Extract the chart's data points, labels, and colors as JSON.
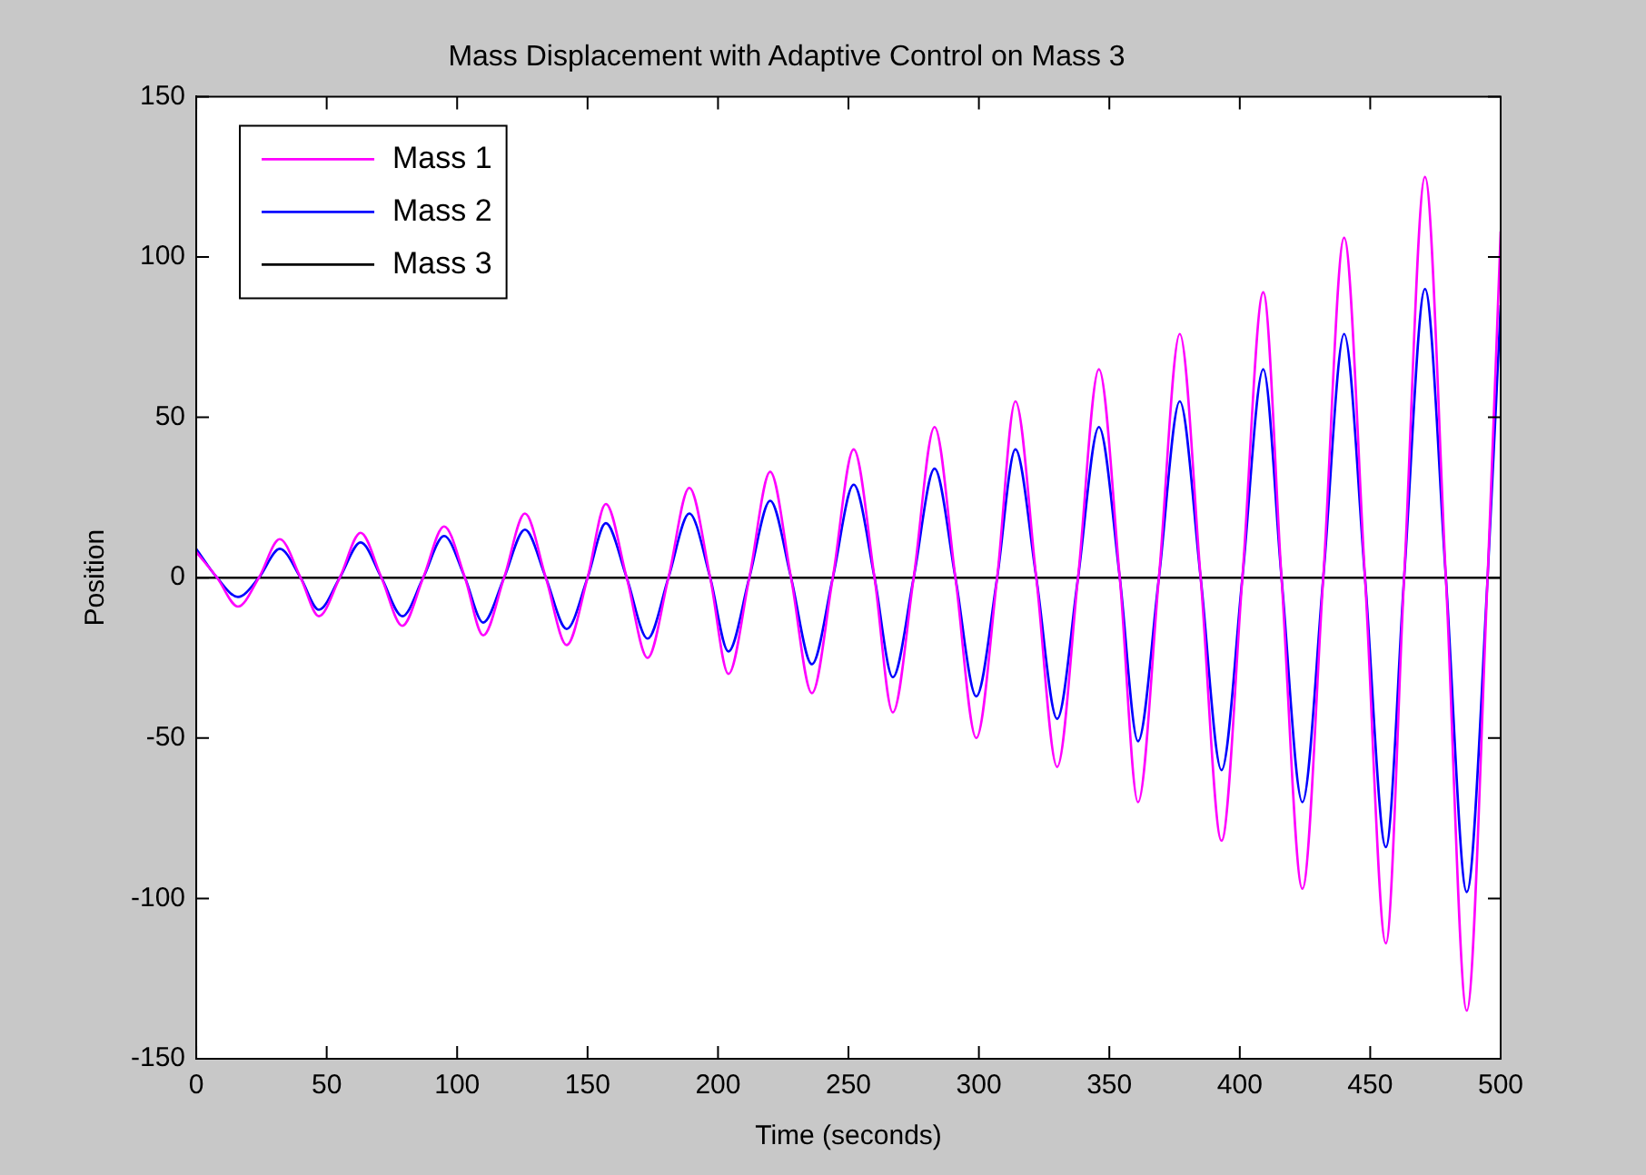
{
  "chart_data": {
    "type": "line",
    "title": "Mass Displacement with Adaptive Control on Mass 3",
    "xlabel": "Time (seconds)",
    "ylabel": "Position",
    "x": [
      0,
      8,
      16,
      24,
      32,
      40,
      47,
      55,
      63,
      71,
      79,
      87,
      95,
      103,
      110,
      118,
      126,
      134,
      142,
      150,
      157,
      165,
      173,
      181,
      189,
      197,
      204,
      212,
      220,
      228,
      236,
      244,
      252,
      260,
      267,
      275,
      283,
      291,
      299,
      307,
      314,
      322,
      330,
      338,
      346,
      354,
      361,
      369,
      377,
      385,
      393,
      401,
      409,
      416,
      424,
      432,
      440,
      448,
      456,
      463,
      471,
      479,
      487,
      495,
      500
    ],
    "series": [
      {
        "name": "Mass 1",
        "color": "#ff00ff",
        "values": [
          8,
          0,
          -9,
          0,
          12,
          0,
          -12,
          0,
          14,
          0,
          -15,
          0,
          16,
          0,
          -18,
          0,
          20,
          0,
          -21,
          0,
          23,
          0,
          -25,
          0,
          28,
          0,
          -30,
          0,
          33,
          0,
          -36,
          0,
          40,
          0,
          -42,
          0,
          47,
          0,
          -50,
          0,
          55,
          0,
          -59,
          0,
          65,
          0,
          -70,
          0,
          76,
          0,
          -82,
          0,
          89,
          0,
          -97,
          0,
          106,
          0,
          -114,
          0,
          125,
          0,
          -135,
          0,
          108
        ]
      },
      {
        "name": "Mass 2",
        "color": "#0000ff",
        "values": [
          9,
          0,
          -6,
          0,
          9,
          0,
          -10,
          0,
          11,
          0,
          -12,
          0,
          13,
          0,
          -14,
          0,
          15,
          0,
          -16,
          0,
          17,
          0,
          -19,
          0,
          20,
          0,
          -23,
          0,
          24,
          0,
          -27,
          0,
          29,
          0,
          -31,
          0,
          34,
          0,
          -37,
          0,
          40,
          0,
          -44,
          0,
          47,
          0,
          -51,
          0,
          55,
          0,
          -60,
          0,
          65,
          0,
          -70,
          0,
          76,
          0,
          -84,
          0,
          90,
          0,
          -98,
          0,
          85
        ]
      },
      {
        "name": "Mass 3",
        "color": "#000000",
        "x": [
          0,
          500
        ],
        "values": [
          0,
          0
        ]
      }
    ],
    "xlim": [
      0,
      500
    ],
    "xticks": [
      0,
      50,
      100,
      150,
      200,
      250,
      300,
      350,
      400,
      450,
      500
    ],
    "ylim": [
      -150,
      150
    ],
    "yticks": [
      -150,
      -100,
      -50,
      0,
      50,
      100,
      150
    ],
    "grid": false,
    "legend": "top left",
    "marker": "none",
    "line_style": "solid"
  }
}
